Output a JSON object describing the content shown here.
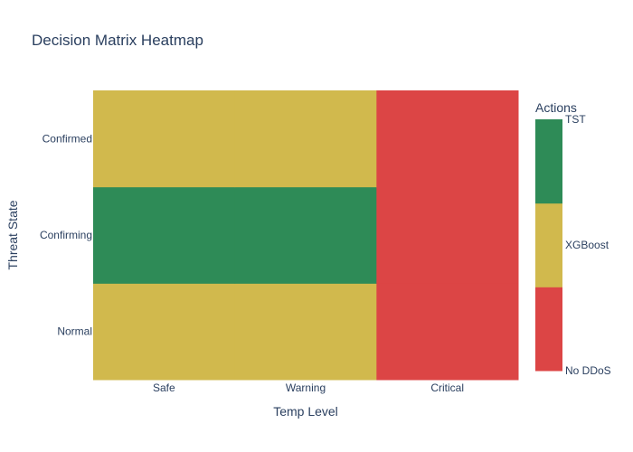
{
  "chart_data": {
    "type": "heatmap",
    "title": "Decision Matrix Heatmap",
    "xlabel": "Temp Level",
    "ylabel": "Threat State",
    "x_categories": [
      "Safe",
      "Warning",
      "Critical"
    ],
    "y_categories": [
      "Normal",
      "Confirming",
      "Confirmed"
    ],
    "z": [
      [
        "XGBoost",
        "XGBoost",
        "No DDoS"
      ],
      [
        "TST",
        "TST",
        "No DDoS"
      ],
      [
        "XGBoost",
        "XGBoost",
        "No DDoS"
      ]
    ],
    "legend": {
      "title": "Actions",
      "entries": [
        {
          "label": "No DDoS",
          "color": "#dc4545"
        },
        {
          "label": "XGBoost",
          "color": "#d1b94d"
        },
        {
          "label": "TST",
          "color": "#2e8b57"
        }
      ],
      "tick_labels": [
        "TST",
        "XGBoost",
        "No DDoS"
      ]
    }
  }
}
